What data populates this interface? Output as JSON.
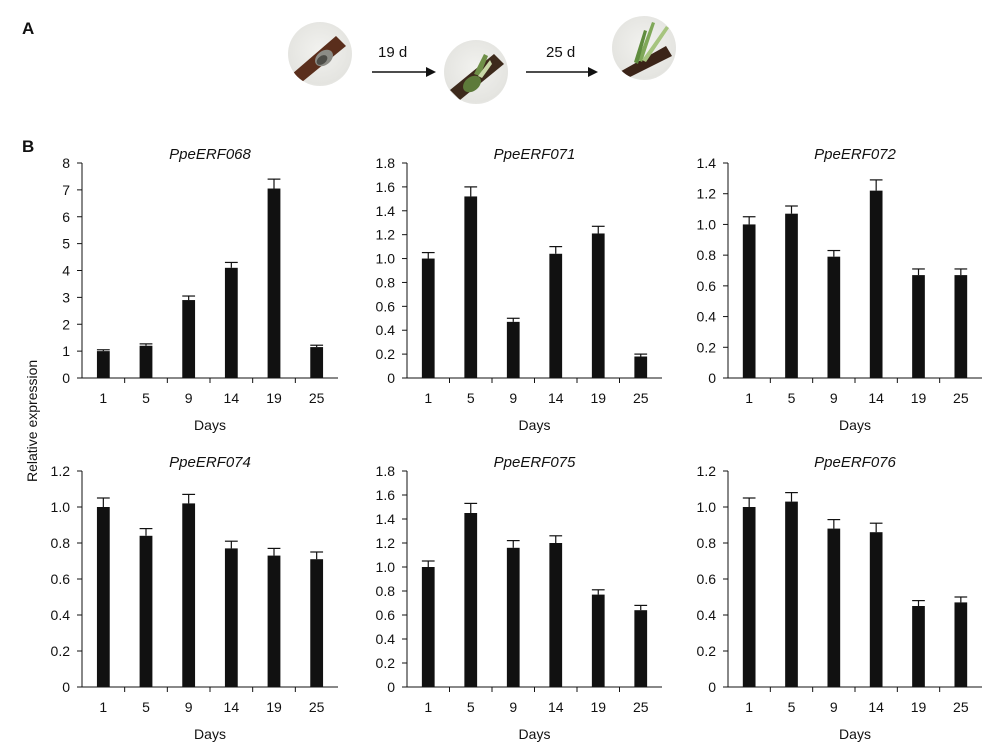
{
  "panel_a": {
    "label": "A",
    "arrows": [
      {
        "label": "19 d"
      },
      {
        "label": "25 d"
      }
    ]
  },
  "panel_b": {
    "label": "B",
    "shared_ylabel": "Relative expression"
  },
  "chart_data": [
    {
      "type": "bar",
      "title": "PpeERF068",
      "categories": [
        "1",
        "5",
        "9",
        "14",
        "19",
        "25"
      ],
      "values": [
        1.0,
        1.2,
        2.9,
        4.1,
        7.05,
        1.15
      ],
      "errors": [
        0.05,
        0.07,
        0.15,
        0.2,
        0.35,
        0.07
      ],
      "xlabel": "Days",
      "ylim": [
        0,
        8
      ],
      "yticks": [
        "0",
        "1",
        "2",
        "3",
        "4",
        "5",
        "6",
        "7",
        "8"
      ]
    },
    {
      "type": "bar",
      "title": "PpeERF071",
      "categories": [
        "1",
        "5",
        "9",
        "14",
        "19",
        "25"
      ],
      "values": [
        1.0,
        1.52,
        0.47,
        1.04,
        1.21,
        0.18
      ],
      "errors": [
        0.05,
        0.08,
        0.03,
        0.06,
        0.06,
        0.02
      ],
      "xlabel": "Days",
      "ylim": [
        0,
        1.8
      ],
      "yticks": [
        "0",
        "0.2",
        "0.4",
        "0.6",
        "0.8",
        "1.0",
        "1.2",
        "1.4",
        "1.6",
        "1.8"
      ]
    },
    {
      "type": "bar",
      "title": "PpeERF072",
      "categories": [
        "1",
        "5",
        "9",
        "14",
        "19",
        "25"
      ],
      "values": [
        1.0,
        1.07,
        0.79,
        1.22,
        0.67,
        0.67
      ],
      "errors": [
        0.05,
        0.05,
        0.04,
        0.07,
        0.04,
        0.04
      ],
      "xlabel": "Days",
      "ylim": [
        0,
        1.4
      ],
      "yticks": [
        "0",
        "0.2",
        "0.4",
        "0.6",
        "0.8",
        "1.0",
        "1.2",
        "1.4"
      ]
    },
    {
      "type": "bar",
      "title": "PpeERF074",
      "categories": [
        "1",
        "5",
        "9",
        "14",
        "19",
        "25"
      ],
      "values": [
        1.0,
        0.84,
        1.02,
        0.77,
        0.73,
        0.71
      ],
      "errors": [
        0.05,
        0.04,
        0.05,
        0.04,
        0.04,
        0.04
      ],
      "xlabel": "Days",
      "ylim": [
        0,
        1.2
      ],
      "yticks": [
        "0",
        "0.2",
        "0.4",
        "0.6",
        "0.8",
        "1.0",
        "1.2"
      ]
    },
    {
      "type": "bar",
      "title": "PpeERF075",
      "categories": [
        "1",
        "5",
        "9",
        "14",
        "19",
        "25"
      ],
      "values": [
        1.0,
        1.45,
        1.16,
        1.2,
        0.77,
        0.64
      ],
      "errors": [
        0.05,
        0.08,
        0.06,
        0.06,
        0.04,
        0.04
      ],
      "xlabel": "Days",
      "ylim": [
        0,
        1.8
      ],
      "yticks": [
        "0",
        "0.2",
        "0.4",
        "0.6",
        "0.8",
        "1.0",
        "1.2",
        "1.4",
        "1.6",
        "1.8"
      ]
    },
    {
      "type": "bar",
      "title": "PpeERF076",
      "categories": [
        "1",
        "5",
        "9",
        "14",
        "19",
        "25"
      ],
      "values": [
        1.0,
        1.03,
        0.88,
        0.86,
        0.45,
        0.47
      ],
      "errors": [
        0.05,
        0.05,
        0.05,
        0.05,
        0.03,
        0.03
      ],
      "xlabel": "Days",
      "ylim": [
        0,
        1.2
      ],
      "yticks": [
        "0",
        "0.2",
        "0.4",
        "0.6",
        "0.8",
        "1.0",
        "1.2"
      ]
    }
  ]
}
